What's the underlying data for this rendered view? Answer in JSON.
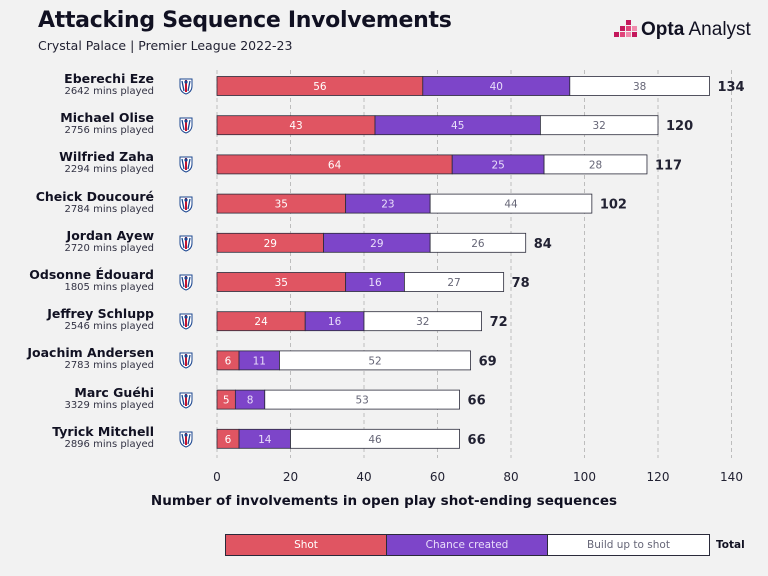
{
  "header": {
    "title": "Attacking Sequence Involvements",
    "subtitle": "Crystal Palace | Premier League 2022-23",
    "brand_bold": "Opta",
    "brand_light": " Analyst"
  },
  "icons": {
    "crest": "crystal-palace-crest-icon",
    "brand": "opta-analyst-logo-icon"
  },
  "colors": {
    "shot": "#e05562",
    "chance_created": "#7d45c9",
    "build_up": "#ffffff",
    "background": "#f2f2f2",
    "grid": "#bdbdbd"
  },
  "players": [
    {
      "name": "Eberechi Eze",
      "mins": "2642 mins played"
    },
    {
      "name": "Michael Olise",
      "mins": "2756 mins played"
    },
    {
      "name": "Wilfried Zaha",
      "mins": "2294 mins played"
    },
    {
      "name": "Cheick Doucouré",
      "mins": "2784 mins played"
    },
    {
      "name": "Jordan Ayew",
      "mins": "2720 mins played"
    },
    {
      "name": "Odsonne Édouard",
      "mins": "1805 mins played"
    },
    {
      "name": "Jeffrey Schlupp",
      "mins": "2546 mins played"
    },
    {
      "name": "Joachim Andersen",
      "mins": "2783 mins played"
    },
    {
      "name": "Marc Guéhi",
      "mins": "3329 mins played"
    },
    {
      "name": "Tyrick Mitchell",
      "mins": "2896 mins played"
    }
  ],
  "legend": {
    "shot": "Shot",
    "chance_created": "Chance created",
    "build_up": "Build up to shot",
    "total": "Total"
  },
  "chart_data": {
    "type": "bar",
    "orientation": "horizontal",
    "stacked": true,
    "title": "Attacking Sequence Involvements",
    "subtitle": "Crystal Palace | Premier League 2022-23",
    "xlabel": "Number of involvements in open play shot-ending sequences",
    "ylabel": "",
    "xlim": [
      0,
      140
    ],
    "xticks": [
      0,
      20,
      40,
      60,
      80,
      100,
      120,
      140
    ],
    "grid": "vertical dashed",
    "legend_position": "bottom",
    "categories": [
      "Eberechi Eze",
      "Michael Olise",
      "Wilfried Zaha",
      "Cheick Doucouré",
      "Jordan Ayew",
      "Odsonne Édouard",
      "Jeffrey Schlupp",
      "Joachim Andersen",
      "Marc Guéhi",
      "Tyrick Mitchell"
    ],
    "series": [
      {
        "name": "Shot",
        "values": [
          56,
          43,
          64,
          35,
          29,
          35,
          24,
          6,
          5,
          6
        ]
      },
      {
        "name": "Chance created",
        "values": [
          40,
          45,
          25,
          23,
          29,
          16,
          16,
          11,
          8,
          14
        ]
      },
      {
        "name": "Build up to shot",
        "values": [
          38,
          32,
          28,
          44,
          26,
          27,
          32,
          52,
          53,
          46
        ]
      }
    ],
    "totals": [
      134,
      120,
      117,
      102,
      84,
      78,
      72,
      69,
      66,
      66
    ]
  }
}
